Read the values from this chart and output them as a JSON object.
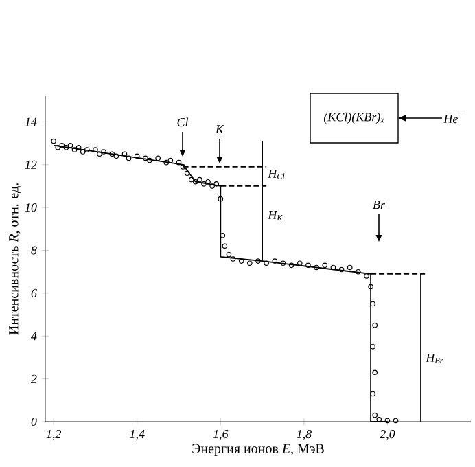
{
  "chart_data": {
    "type": "scatter",
    "xlabel": "Энергия ионов *E*, МэВ",
    "ylabel": "Интенсивность *R*, отн. ед.",
    "xlim": [
      1.18,
      2.2
    ],
    "ylim": [
      0,
      15.2
    ],
    "xticks": [
      {
        "value": 1.2,
        "label": "1,2"
      },
      {
        "value": 1.4,
        "label": "1,4"
      },
      {
        "value": 1.6,
        "label": "1,6"
      },
      {
        "value": 1.8,
        "label": "1,8"
      },
      {
        "value": 2.0,
        "label": "2,0"
      }
    ],
    "yticks": [
      0,
      2,
      4,
      6,
      8,
      10,
      12,
      14
    ],
    "grid": false,
    "series": [
      {
        "marker": "circle",
        "color": "#000000",
        "x": [
          1.2,
          1.21,
          1.22,
          1.23,
          1.24,
          1.25,
          1.26,
          1.27,
          1.28,
          1.3,
          1.31,
          1.32,
          1.34,
          1.35,
          1.37,
          1.38,
          1.4,
          1.42,
          1.43,
          1.45,
          1.47,
          1.48,
          1.5,
          1.51,
          1.52,
          1.53,
          1.54,
          1.55,
          1.56,
          1.57,
          1.58,
          1.59,
          1.6,
          1.605,
          1.61,
          1.62,
          1.63,
          1.65,
          1.67,
          1.69,
          1.71,
          1.73,
          1.75,
          1.77,
          1.79,
          1.81,
          1.83,
          1.85,
          1.87,
          1.89,
          1.91,
          1.93,
          1.95,
          1.96,
          1.965,
          1.97,
          1.965,
          1.97,
          1.965,
          1.97,
          1.98,
          2.0,
          2.02
        ],
        "values": [
          13.1,
          12.8,
          12.9,
          12.8,
          12.9,
          12.7,
          12.8,
          12.6,
          12.7,
          12.7,
          12.5,
          12.6,
          12.5,
          12.4,
          12.5,
          12.3,
          12.4,
          12.3,
          12.2,
          12.3,
          12.1,
          12.2,
          12.1,
          11.9,
          11.6,
          11.3,
          11.2,
          11.3,
          11.1,
          11.2,
          11.0,
          11.1,
          10.4,
          8.7,
          8.2,
          7.8,
          7.6,
          7.5,
          7.4,
          7.5,
          7.4,
          7.5,
          7.4,
          7.3,
          7.4,
          7.3,
          7.2,
          7.3,
          7.2,
          7.1,
          7.2,
          7.0,
          6.8,
          6.3,
          5.5,
          4.5,
          3.5,
          2.3,
          1.3,
          0.3,
          0.1,
          0.05,
          0.05
        ]
      },
      {
        "type": "line",
        "marker": "none",
        "line_style": "solid",
        "color": "#000000",
        "x": [
          1.2,
          1.51,
          1.54,
          1.6,
          1.6,
          1.7,
          1.96,
          1.96,
          2.0
        ],
        "values": [
          12.9,
          12.0,
          11.2,
          11.0,
          7.7,
          7.5,
          6.9,
          0,
          0
        ]
      },
      {
        "type": "line",
        "marker": "none",
        "line_style": "dashed",
        "color": "#000000",
        "x": [
          1.51,
          1.71
        ],
        "values": [
          11.9,
          11.9
        ]
      },
      {
        "type": "line",
        "marker": "none",
        "line_style": "dashed",
        "color": "#000000",
        "x": [
          1.6,
          1.71
        ],
        "values": [
          11.0,
          11.0
        ]
      },
      {
        "type": "line",
        "marker": "none",
        "line_style": "dashed",
        "color": "#000000",
        "x": [
          1.96,
          2.09
        ],
        "values": [
          6.9,
          6.9
        ]
      },
      {
        "type": "line",
        "marker": "none",
        "line_style": "solid",
        "color": "#000000",
        "x": [
          1.7,
          1.7
        ],
        "values": [
          13.1,
          7.5
        ]
      },
      {
        "type": "line",
        "marker": "none",
        "line_style": "solid",
        "color": "#000000",
        "x": [
          2.08,
          2.08
        ],
        "values": [
          6.9,
          0
        ]
      }
    ],
    "annotations": [
      "Cl",
      "K",
      "Br",
      "H$_{Cl}$",
      "H$_{K}$",
      "H$_{Br}$",
      "(KCl)(KBr)$_{x}$",
      "He$^{+}$"
    ]
  }
}
